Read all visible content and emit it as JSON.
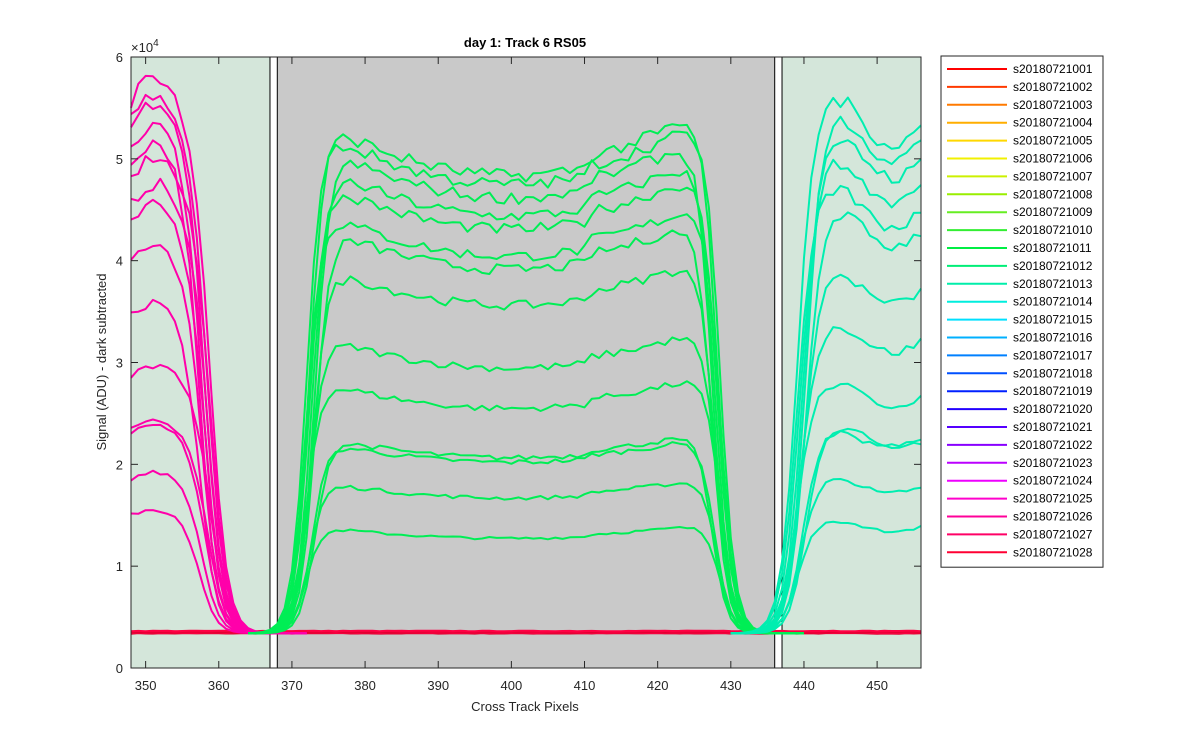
{
  "chart_data": {
    "type": "line",
    "title": "day 1: Track 6  RS05",
    "xlabel": "Cross Track Pixels",
    "ylabel": "Signal (ADU) - dark subtracted",
    "xlim": [
      348,
      456
    ],
    "ylim": [
      0,
      60000
    ],
    "y_exponent_label": "×10",
    "y_exponent_power": "4",
    "x_ticks": [
      350,
      360,
      370,
      380,
      390,
      400,
      410,
      420,
      430,
      440,
      450
    ],
    "x_tick_labels": [
      "350",
      "360",
      "370",
      "380",
      "390",
      "400",
      "410",
      "420",
      "430",
      "440",
      "450"
    ],
    "y_ticks": [
      0,
      10000,
      20000,
      30000,
      40000,
      50000,
      60000
    ],
    "y_tick_labels": [
      "0",
      "1",
      "2",
      "3",
      "4",
      "5",
      "6"
    ],
    "grid": false,
    "legend_position": "outside-right",
    "background_regions": [
      {
        "x0": 348,
        "x1": 367,
        "color": "#d4e6da"
      },
      {
        "x0": 368,
        "x1": 436,
        "color": "#c9c9c9"
      },
      {
        "x0": 437,
        "x1": 456,
        "color": "#d4e6da"
      }
    ],
    "baseline_level": 3400,
    "series": [
      {
        "name": "s20180721001",
        "color": "#ff0000"
      },
      {
        "name": "s20180721002",
        "color": "#ff3a00"
      },
      {
        "name": "s20180721003",
        "color": "#ff7a00"
      },
      {
        "name": "s20180721004",
        "color": "#ffae00"
      },
      {
        "name": "s20180721005",
        "color": "#ffd800"
      },
      {
        "name": "s20180721006",
        "color": "#f2f000"
      },
      {
        "name": "s20180721007",
        "color": "#ccf000"
      },
      {
        "name": "s20180721008",
        "color": "#99ee00",
        "left_level": 0,
        "center_level": 0,
        "right_level": 0
      },
      {
        "name": "s20180721009",
        "color": "#66ee22",
        "center_level": 15000
      },
      {
        "name": "s20180721010",
        "color": "#33ee33",
        "center_level": 19000
      },
      {
        "name": "s20180721011",
        "color": "#00ee44",
        "center_level": 23000
      },
      {
        "name": "s20180721012",
        "color": "#00ee77",
        "center_level": 28500
      },
      {
        "name": "s20180721013",
        "color": "#00eeaa",
        "center_level": 33500
      },
      {
        "name": "s20180721014",
        "color": "#00eedd",
        "right_level": 14000
      },
      {
        "name": "s20180721015",
        "color": "#00e0ff",
        "right_level": 18000
      },
      {
        "name": "s20180721016",
        "color": "#00b0ff",
        "right_level": 23000
      },
      {
        "name": "s20180721017",
        "color": "#0080ff",
        "right_level": 27500
      },
      {
        "name": "s20180721018",
        "color": "#0050ff",
        "right_level": 33000
      },
      {
        "name": "s20180721019",
        "color": "#0020ff",
        "right_level": 40000
      },
      {
        "name": "s20180721020",
        "color": "#2200ff"
      },
      {
        "name": "s20180721021",
        "color": "#5500ff"
      },
      {
        "name": "s20180721022",
        "color": "#8800ff"
      },
      {
        "name": "s20180721023",
        "color": "#bb00ff"
      },
      {
        "name": "s20180721024",
        "color": "#ee00ff",
        "left_level": 15000
      },
      {
        "name": "s20180721025",
        "color": "#ff00cc",
        "left_level": 23000
      },
      {
        "name": "s20180721026",
        "color": "#ff0099",
        "left_level": 28500
      },
      {
        "name": "s20180721027",
        "color": "#ff0066",
        "left_level": 35000
      },
      {
        "name": "s20180721028",
        "color": "#ff0033",
        "left_level": 45000
      }
    ],
    "left_bundle": {
      "color": "#ff00aa",
      "levels": [
        15000,
        18500,
        23000,
        23500,
        28500,
        34500,
        40000,
        43500,
        45500,
        48000,
        49500,
        51000,
        53000,
        54000,
        55500
      ]
    },
    "center_bundle": {
      "color": "#00ee55",
      "levels": [
        14000,
        18500,
        22500,
        23000,
        28500,
        33000,
        40000,
        44000,
        45500,
        48500,
        50000,
        52000,
        53500,
        54500
      ]
    },
    "right_bundle": {
      "color": "#00eeb0",
      "levels": [
        14000,
        18000,
        22500,
        23000,
        27000,
        32500,
        37500,
        43500,
        45500,
        48000,
        50500,
        52500,
        54000
      ]
    }
  }
}
